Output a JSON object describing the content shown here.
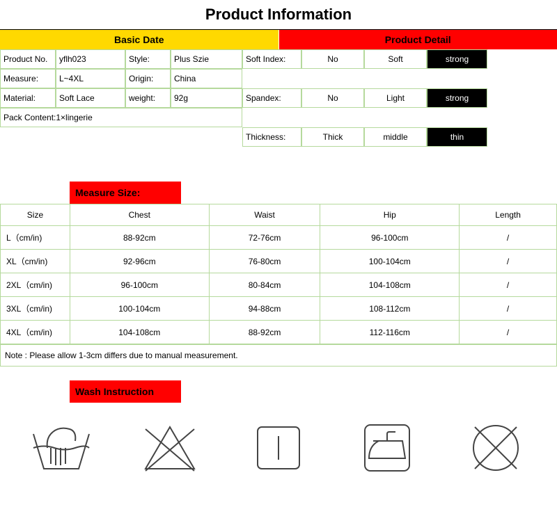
{
  "title": "Product Information",
  "headers": {
    "basic": "Basic Date",
    "detail": "Product Detail"
  },
  "colors": {
    "yellow": "#ffd900",
    "red": "#ff0000",
    "black": "#000000",
    "white": "#ffffff",
    "border_green": "#b5d99c",
    "text": "#000000"
  },
  "fonts": {
    "title_size": 22,
    "header_size": 14,
    "body_size": 12
  },
  "basic": {
    "rows": [
      {
        "l1": "Product No.",
        "v1": "yflh023",
        "l2": "Style:",
        "v2": "Plus Szie"
      },
      {
        "l1": "Measure:",
        "v1": "L~4XL",
        "l2": "Origin:",
        "v2": "China"
      },
      {
        "l1": "Material:",
        "v1": "Soft Lace",
        "l2": "weight:",
        "v2": "92g"
      }
    ],
    "pack": "Pack Content:1×lingerie"
  },
  "detail": {
    "rows": [
      {
        "label": "Soft Index:",
        "o1": "No",
        "o2": "Soft",
        "sel": "strong"
      },
      {
        "label": "Spandex:",
        "o1": "No",
        "o2": "Light",
        "sel": "strong"
      },
      {
        "label": "Thickness:",
        "o1": "Thick",
        "o2": "middle",
        "sel": "thin"
      }
    ]
  },
  "measure_header": "Measure Size:",
  "size_table": {
    "columns": [
      "Size",
      "Chest",
      "Waist",
      "Hip",
      "Length"
    ],
    "col_widths": [
      "100px",
      "200px",
      "160px",
      "200px",
      "140px"
    ],
    "rows": [
      [
        "L（cm/in)",
        "88-92cm",
        "72-76cm",
        "96-100cm",
        "/"
      ],
      [
        "XL（cm/in)",
        "92-96cm",
        "76-80cm",
        "100-104cm",
        "/"
      ],
      [
        "2XL（cm/in)",
        "96-100cm",
        "80-84cm",
        "104-108cm",
        "/"
      ],
      [
        "3XL（cm/in)",
        "100-104cm",
        "94-88cm",
        "108-112cm",
        "/"
      ],
      [
        "4XL（cm/in)",
        "104-108cm",
        "88-92cm",
        "112-116cm",
        "/"
      ]
    ],
    "note": "Note : Please allow 1-3cm differs due to manual measurement."
  },
  "wash_header": "Wash Instruction",
  "wash_icons": [
    "hand-wash",
    "no-bleach",
    "dry",
    "iron",
    "no-dry-clean"
  ],
  "icon_stroke": "#444444",
  "icon_size": 90
}
